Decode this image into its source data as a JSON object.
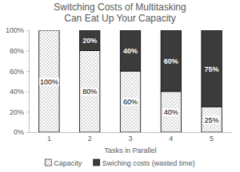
{
  "chart_data": {
    "type": "bar",
    "stacked": true,
    "title": [
      "Switching Costs of Multitasking",
      "Can Eat Up Your Capacity"
    ],
    "x_label": "Tasks in Parallel",
    "categories": [
      "1",
      "2",
      "3",
      "4",
      "5"
    ],
    "series": [
      {
        "name": "Capacity",
        "color": "#ffffff",
        "values": [
          100,
          80,
          60,
          40,
          25
        ],
        "value_labels": [
          "100%",
          "80%",
          "60%",
          "40%",
          "25%"
        ]
      },
      {
        "name": "Swiching costs (wasted time)",
        "color": "#3b3b3b",
        "values": [
          0,
          20,
          40,
          60,
          75
        ],
        "value_labels": [
          null,
          "20%",
          "40%",
          "60%",
          "75%"
        ]
      }
    ],
    "ylim": [
      0,
      100
    ],
    "yticks": [
      {
        "value": 0,
        "label": "0%"
      },
      {
        "value": 20,
        "label": "20%"
      },
      {
        "value": 40,
        "label": "40%"
      },
      {
        "value": 60,
        "label": "60%"
      },
      {
        "value": 80,
        "label": "80%"
      },
      {
        "value": 100,
        "label": "100%"
      }
    ],
    "grid": false,
    "legend": "bottom",
    "data_labels": true
  }
}
